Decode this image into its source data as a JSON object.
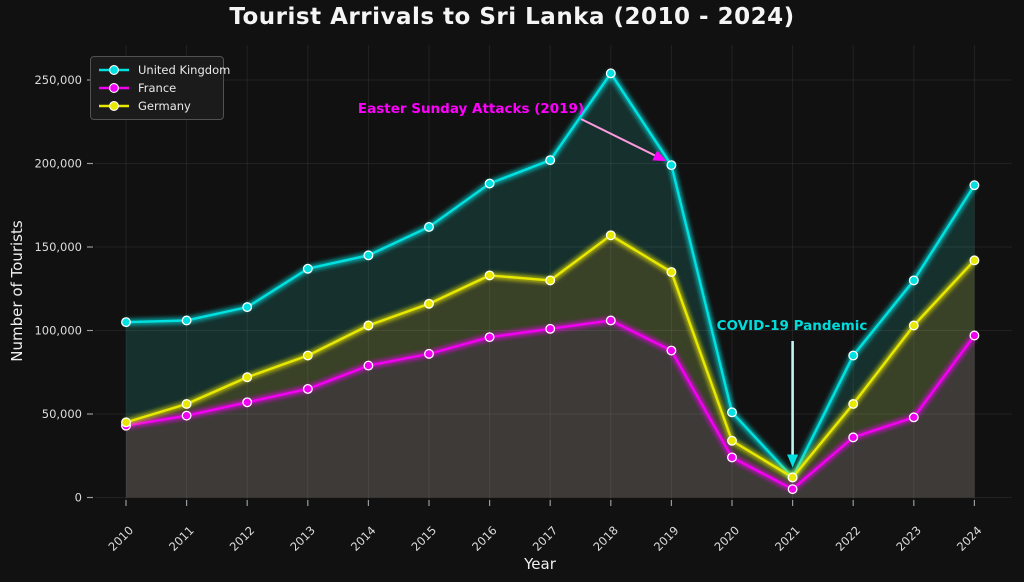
{
  "chart_data": {
    "type": "line",
    "title": "Tourist Arrivals to Sri Lanka (2010 - 2024)",
    "xlabel": "Year",
    "ylabel": "Number of Tourists",
    "x": [
      2010,
      2011,
      2012,
      2013,
      2014,
      2015,
      2016,
      2017,
      2018,
      2019,
      2020,
      2021,
      2022,
      2023,
      2024
    ],
    "x_tick_labels": [
      "2010",
      "2011",
      "2012",
      "2013",
      "2014",
      "2015",
      "2016",
      "2017",
      "2018",
      "2019",
      "2020",
      "2021",
      "2022",
      "2023",
      "2024"
    ],
    "y_ticks": [
      0,
      50000,
      100000,
      150000,
      200000,
      250000
    ],
    "y_tick_labels": [
      "0",
      "50,000",
      "100,000",
      "150,000",
      "200,000",
      "250,000"
    ],
    "ylim": [
      0,
      270000
    ],
    "grid": true,
    "legend_position": "upper left",
    "background_color": "#111111",
    "series": [
      {
        "name": "United Kingdom",
        "color": "#00e1e1",
        "fill_color": "#15302d",
        "values": [
          105000,
          106000,
          114000,
          137000,
          145000,
          162000,
          188000,
          202000,
          254000,
          199000,
          51000,
          12000,
          85000,
          130000,
          187000
        ]
      },
      {
        "name": "France",
        "color": "#f200f2",
        "fill_color": "#3d3a37",
        "values": [
          43000,
          49000,
          57000,
          65000,
          79000,
          86000,
          96000,
          101000,
          106000,
          88000,
          24000,
          5000,
          36000,
          48000,
          97000
        ]
      },
      {
        "name": "Germany",
        "color": "#e8e800",
        "fill_color": "#394127",
        "values": [
          45000,
          56000,
          72000,
          85000,
          103000,
          116000,
          133000,
          130000,
          157000,
          135000,
          34000,
          12000,
          56000,
          103000,
          142000
        ]
      }
    ],
    "annotations": [
      {
        "text": "Easter Sunday Attacks (2019)",
        "color": "#ff00ff",
        "arrow_color": "#ff9ade",
        "arrow_head_color": "#ff00ff",
        "target_year": 2019,
        "target_series": "United Kingdom"
      },
      {
        "text": "COVID-19 Pandemic",
        "color": "#00dcdc",
        "arrow_color": "#bef5f5",
        "arrow_head_color": "#00e1e1",
        "target_year": 2021,
        "target_series": "Germany"
      }
    ]
  }
}
